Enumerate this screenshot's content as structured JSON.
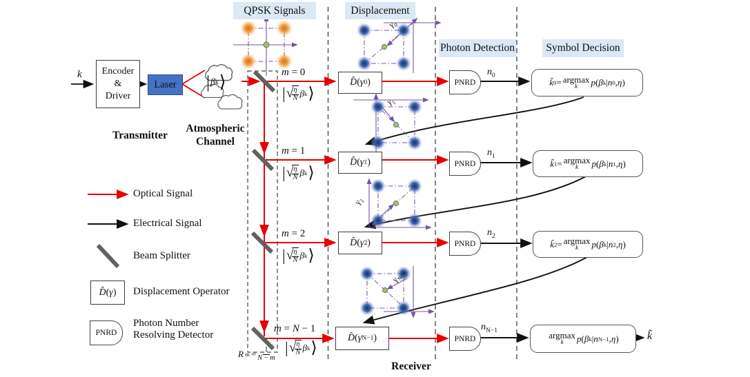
{
  "headers": {
    "qpsk": "QPSK Signals",
    "displacement": "Displacement",
    "photon_detection": "Photon Detection",
    "symbol_decision": "Symbol Decision"
  },
  "transmitter": {
    "input_label": "<i>k</i>",
    "encoder_lines": [
      "Encoder",
      "&",
      "Driver"
    ],
    "laser_label": "Laser",
    "output_state": "<span class='ket'><span class='dl'>|</span><i>β</i><sub>k</sub><span class='dl'>⟩</span></span>",
    "section_label": "Transmitter"
  },
  "channel": {
    "label": "Atmospheric Channel"
  },
  "splitter_column": {
    "ratio_formula": "<i>R</i><sub>m</sub> = <span class='frac'><span class='num'>1</span><span><i>N</i> − <i>m</i></span></span>"
  },
  "rows": [
    {
      "m_label": "<i>m</i> = 0",
      "state": "<span class='ket'><span class='dl'>|</span><span class='sq'>√</span><span class='rad'><span class='frac'><span class='num'><i>η</i></span><span><i>N</i></span></span></span><i>β</i><sub>k</sub><span class='dl'>⟩</span></span>",
      "dop": "<i>D̂</i>(<i>γ</i><sub>0</sub>)",
      "gamma": "<i>γ</i><sub>0</sub>",
      "pnrd": "PNRD",
      "count": "<i>n</i><sub>0</sub>",
      "decision": "<i>k̃</i><sub>0</sub>=<span class='am'><span>argmax</span><span class='under'>k</span></span><i>p</i>(<i>β</i><sub>k</sub>|<i>n</i><sub>0</sub>, <i>η</i>)"
    },
    {
      "m_label": "<i>m</i> = 1",
      "state": "<span class='ket'><span class='dl'>|</span><span class='sq'>√</span><span class='rad'><span class='frac'><span class='num'><i>η</i></span><span><i>N</i></span></span></span><i>β</i><sub>k</sub><span class='dl'>⟩</span></span>",
      "dop": "<i>D̂</i>(<i>γ</i><sub>1</sub>)",
      "gamma": "<i>γ</i><sub>1</sub>",
      "pnrd": "PNRD",
      "count": "<i>n</i><sub>1</sub>",
      "decision": "<i>k̃</i><sub>1</sub>= <span class='am'><span>argmax</span><span class='under'>k</span></span><i>p</i>(<i>β</i><sub>k</sub>|<i>n</i><sub>1</sub>, <i>η</i>)"
    },
    {
      "m_label": "<i>m</i> = 2",
      "state": "<span class='ket'><span class='dl'>|</span><span class='sq'>√</span><span class='rad'><span class='frac'><span class='num'><i>η</i></span><span><i>N</i></span></span></span><i>β</i><sub>k</sub><span class='dl'>⟩</span></span>",
      "dop": "<i>D̂</i>(<i>γ</i><sub>2</sub>)",
      "gamma": "<i>γ</i><sub>2</sub>",
      "pnrd": "PNRD",
      "count": "<i>n</i><sub>2</sub>",
      "decision": "<i>k̃</i><sub>2</sub>= <span class='am'><span>argmax</span><span class='under'>k</span></span><i>p</i>(<i>β</i><sub>k</sub>|<i>n</i><sub>2</sub>, <i>η</i>)"
    },
    {
      "m_label": "<i>m</i> = <i>N</i> − 1",
      "state": "<span class='ket'><span class='dl'>|</span><span class='sq'>√</span><span class='rad'><span class='frac'><span class='num'><i>η</i></span><span><i>N</i></span></span></span><i>β</i><sub>k</sub><span class='dl'>⟩</span></span>",
      "dop": "<i>D̂</i>(<i>γ</i><sub>N−1</sub>)",
      "gamma": "<i>γ</i><sub>N−1</sub>",
      "pnrd": "PNRD",
      "count": "<i>n</i><sub>N−1</sub>",
      "decision": "<span class='am'><span>argmax</span><span class='under'>k</span></span><i>p</i>(<i>β</i><sub>k</sub>|<i>n</i><sub>N−1</sub>, <i>η</i>)"
    }
  ],
  "receiver_label": "Receiver",
  "final_output": "<i>k̃</i>",
  "legend": {
    "items": [
      {
        "name": "optical-signal",
        "label": "Optical Signal"
      },
      {
        "name": "electrical-signal",
        "label": "Electrical Signal"
      },
      {
        "name": "beam-splitter",
        "label": "Beam Splitter"
      },
      {
        "name": "displacement-operator",
        "label": "Displacement Operator",
        "symbol": "<i>D̂</i>(<i>γ</i>)"
      },
      {
        "name": "pnrd",
        "label": "Photon Number Resolving Detector",
        "symbol": "PNRD"
      }
    ]
  },
  "colors": {
    "optical_signal": "#e60000",
    "electrical_signal": "#111111",
    "laser_fill": "#4472c4",
    "header_bg": "#dbe8f5",
    "constellation_axis": "#7a52a8",
    "qpsk_dot": "#e8882f",
    "displaced_dot": "#2d4f94",
    "center_dot": "#9dc961",
    "beam_splitter": "#616161"
  }
}
